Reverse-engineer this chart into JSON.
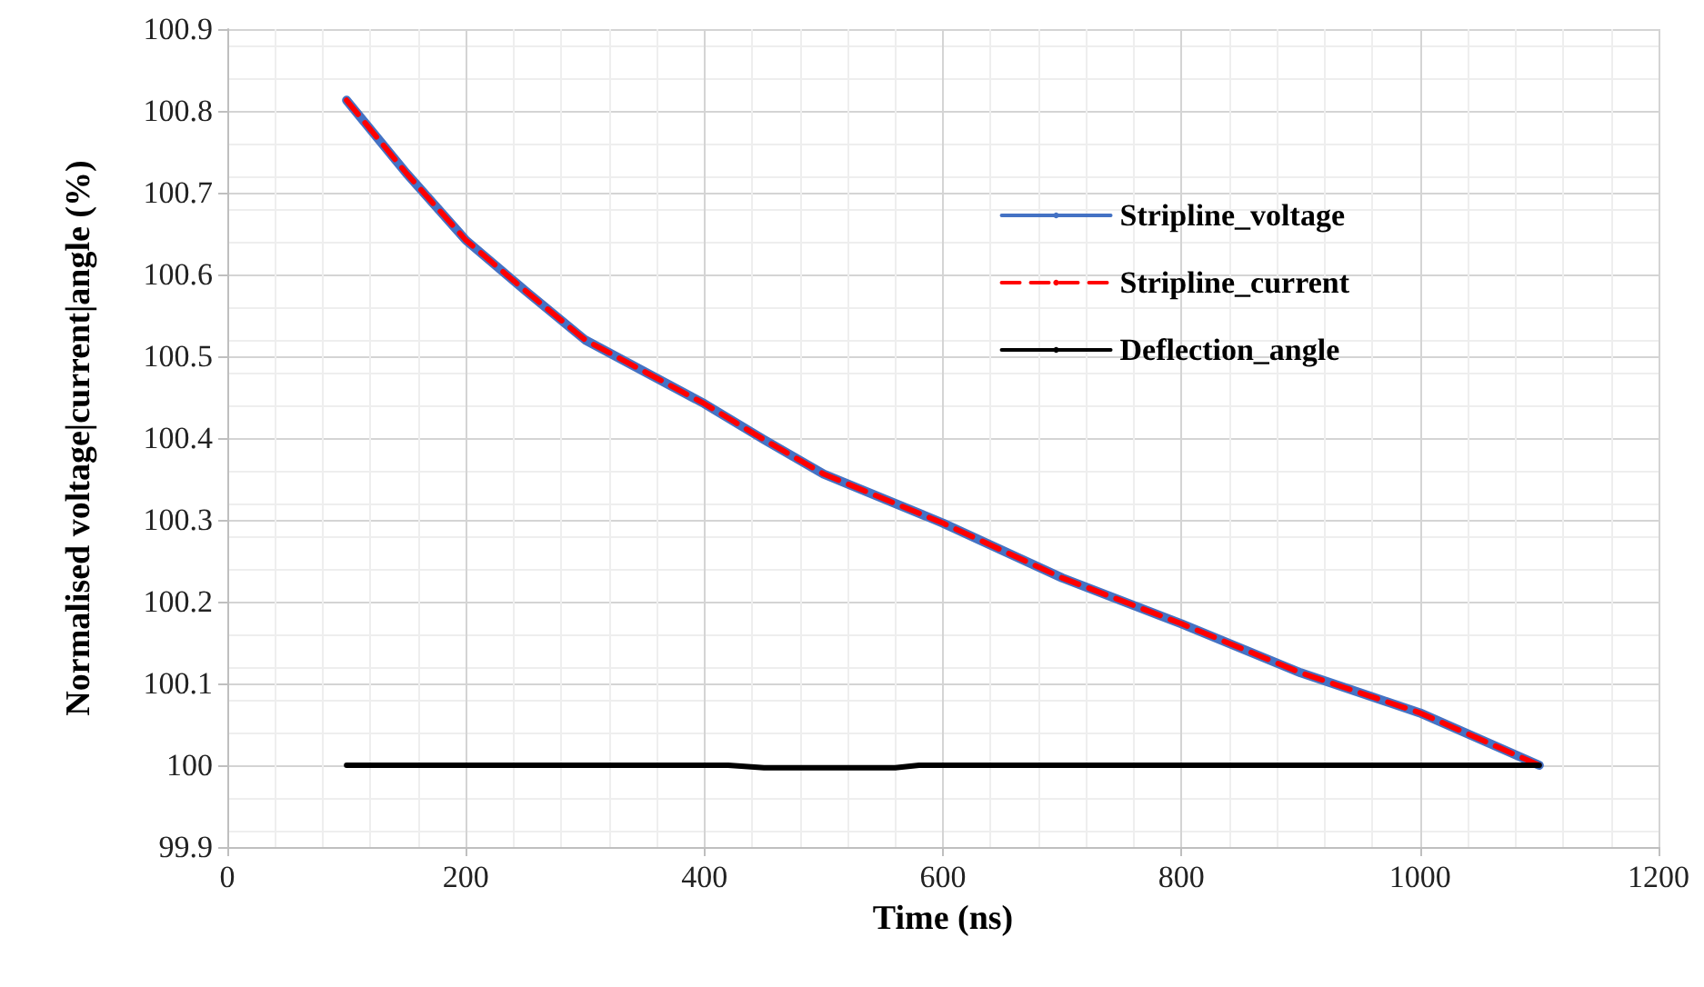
{
  "chart_data": {
    "type": "line",
    "xlabel": "Time (ns)",
    "ylabel": "Normalised voltage|current|angle (%)",
    "xlim": [
      0,
      1200
    ],
    "xticks": [
      0,
      200,
      400,
      600,
      800,
      1000,
      1200
    ],
    "ylim": [
      99.9,
      100.9
    ],
    "yticks": [
      99.9,
      100,
      100.1,
      100.2,
      100.3,
      100.4,
      100.5,
      100.6,
      100.7,
      100.8,
      100.9
    ],
    "grid": true,
    "legend": "top right",
    "marker": "none",
    "series": [
      {
        "name": "Stripline_voltage",
        "color": "#4472c4",
        "line_style": "solid",
        "x": [
          100,
          150,
          200,
          250,
          300,
          400,
          450,
          500,
          600,
          700,
          800,
          900,
          1000,
          1100
        ],
        "values": [
          100.813,
          100.724,
          100.642,
          100.58,
          100.52,
          100.442,
          100.398,
          100.356,
          100.296,
          100.229,
          100.173,
          100.113,
          100.064,
          100.0
        ]
      },
      {
        "name": "Stripline_current",
        "color": "#ff0000",
        "line_style": "dashed",
        "x": [
          100,
          150,
          200,
          250,
          300,
          400,
          450,
          500,
          600,
          700,
          800,
          900,
          1000,
          1100
        ],
        "values": [
          100.813,
          100.724,
          100.642,
          100.58,
          100.52,
          100.442,
          100.398,
          100.356,
          100.296,
          100.229,
          100.173,
          100.113,
          100.064,
          100.0
        ]
      },
      {
        "name": "Deflection_angle",
        "color": "#000000",
        "line_style": "solid",
        "x": [
          100,
          420,
          450,
          560,
          580,
          1100
        ],
        "values": [
          100.0,
          100.0,
          99.997,
          99.997,
          100.0,
          100.0
        ]
      }
    ]
  }
}
